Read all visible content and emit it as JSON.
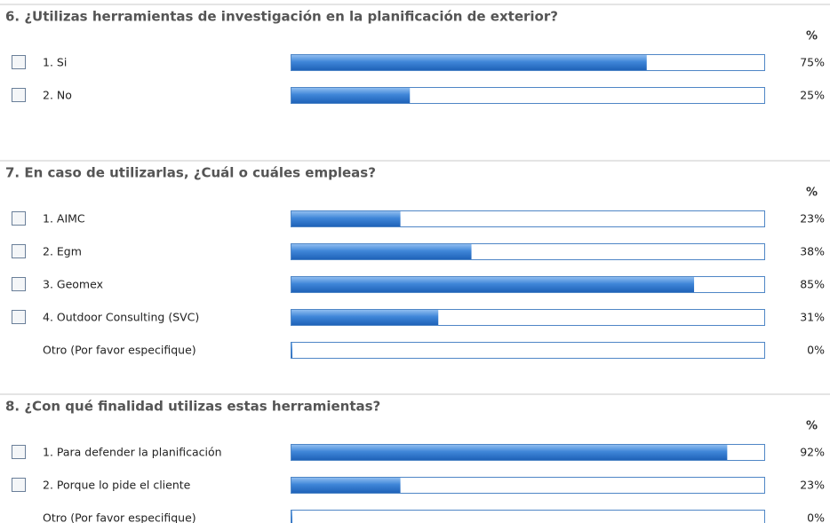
{
  "questions": [
    {
      "title": "6. ¿Utilizas herramientas de investigación en la planificación de exterior?",
      "percent_header": "%",
      "xlim": [
        0,
        100
      ],
      "options": [
        {
          "label": "1. Si",
          "value": 75,
          "value_label": "75%",
          "checkbox": true
        },
        {
          "label": "2. No",
          "value": 25,
          "value_label": "25%",
          "checkbox": true
        }
      ]
    },
    {
      "title": "7. En caso de utilizarlas, ¿Cuál o cuáles empleas?",
      "percent_header": "%",
      "xlim": [
        0,
        100
      ],
      "options": [
        {
          "label": "1. AIMC",
          "value": 23,
          "value_label": "23%",
          "checkbox": true
        },
        {
          "label": "2. Egm",
          "value": 38,
          "value_label": "38%",
          "checkbox": true
        },
        {
          "label": "3. Geomex",
          "value": 85,
          "value_label": "85%",
          "checkbox": true
        },
        {
          "label": "4. Outdoor Consulting (SVC)",
          "value": 31,
          "value_label": "31%",
          "checkbox": true
        },
        {
          "label": "Otro (Por favor especifique)",
          "value": 0,
          "value_label": "0%",
          "checkbox": false
        }
      ]
    },
    {
      "title": "8. ¿Con qué finalidad utilizas estas herramientas?",
      "percent_header": "%",
      "xlim": [
        0,
        100
      ],
      "options": [
        {
          "label": "1. Para defender la planificación",
          "value": 92,
          "value_label": "92%",
          "checkbox": true
        },
        {
          "label": "2. Porque lo pide el cliente",
          "value": 23,
          "value_label": "23%",
          "checkbox": true
        },
        {
          "label": "Otro (Por favor especifique)",
          "value": 0,
          "value_label": "0%",
          "checkbox": false
        }
      ]
    }
  ]
}
